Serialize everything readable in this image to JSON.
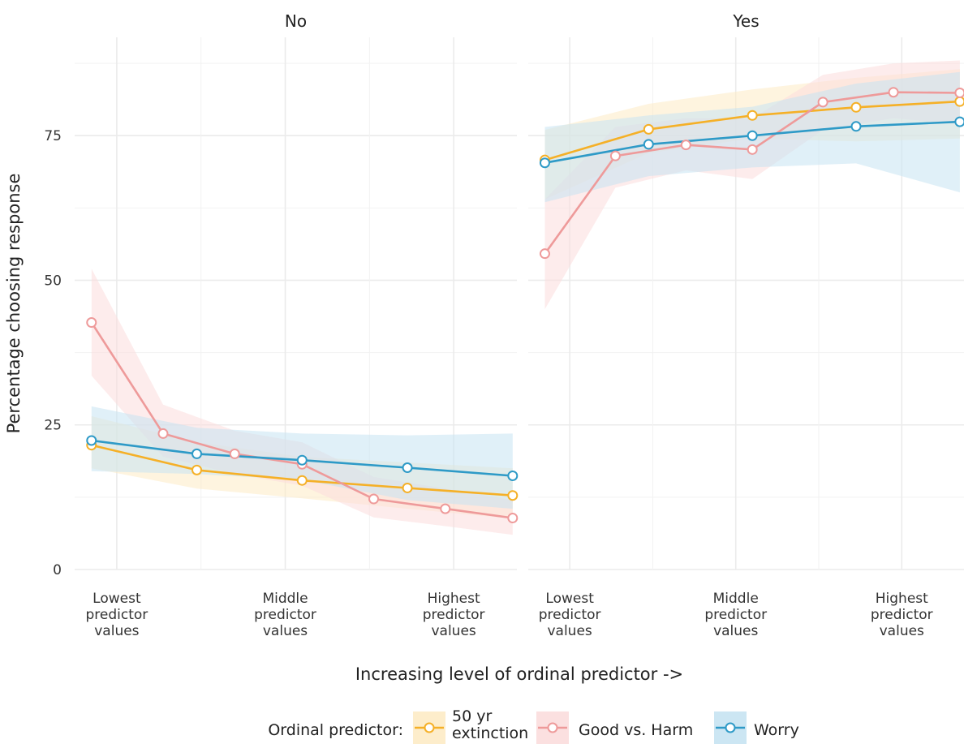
{
  "chart_data": {
    "type": "line",
    "xlabel": "Increasing level of ordinal predictor ->",
    "ylabel": "Percentage choosing response",
    "ylim": [
      0,
      92
    ],
    "y_ticks": [
      0,
      25,
      50,
      75
    ],
    "x_ticks": [
      {
        "value": 0.1,
        "lines": [
          "Lowest",
          "predictor",
          "values"
        ]
      },
      {
        "value": 0.5,
        "lines": [
          "Middle",
          "predictor",
          "values"
        ]
      },
      {
        "value": 0.9,
        "lines": [
          "Highest",
          "predictor",
          "values"
        ]
      }
    ],
    "xlim": [
      0,
      1.05
    ],
    "grid": true,
    "legend": {
      "position": "bottom",
      "title": "Ordinal predictor:",
      "entries": [
        {
          "key": "extinction",
          "lines": [
            "50 yr",
            "extinction"
          ]
        },
        {
          "key": "goodharm",
          "lines": [
            "Good vs. Harm"
          ]
        },
        {
          "key": "worry",
          "lines": [
            "Worry"
          ]
        }
      ]
    },
    "series_style": {
      "extinction": {
        "color": "#F5B027",
        "band": "#FDEBC5"
      },
      "goodharm": {
        "color": "#EE9A9A",
        "band": "#FBDDDD"
      },
      "worry": {
        "color": "#2E9AC7",
        "band": "#C7E3F2"
      }
    },
    "facets": [
      {
        "title": "No",
        "series": [
          {
            "key": "extinction",
            "x": [
              0.04,
              0.29,
              0.54,
              0.79,
              1.04
            ],
            "y": [
              21.5,
              17.2,
              15.4,
              14.1,
              12.8
            ],
            "lower": [
              17.5,
              14.0,
              12.3,
              10.5,
              8.8
            ],
            "upper": [
              26.5,
              22.0,
              19.5,
              18.5,
              17.5
            ]
          },
          {
            "key": "goodharm",
            "x": [
              0.04,
              0.21,
              0.38,
              0.54,
              0.71,
              0.88,
              1.04
            ],
            "y": [
              42.7,
              23.5,
              20.0,
              18.2,
              12.2,
              10.5,
              8.9
            ],
            "lower": [
              33.5,
              19.5,
              16.5,
              14.5,
              9.0,
              7.5,
              6.0
            ],
            "upper": [
              52.0,
              28.5,
              24.0,
              22.0,
              16.0,
              14.0,
              12.0
            ]
          },
          {
            "key": "worry",
            "x": [
              0.04,
              0.29,
              0.54,
              0.79,
              1.04
            ],
            "y": [
              22.3,
              20.0,
              18.9,
              17.6,
              16.2
            ],
            "lower": [
              17.0,
              16.5,
              15.5,
              12.0,
              10.5
            ],
            "upper": [
              28.2,
              24.5,
              23.5,
              23.2,
              23.5
            ]
          }
        ]
      },
      {
        "title": "Yes",
        "series": [
          {
            "key": "extinction",
            "x": [
              0.04,
              0.29,
              0.54,
              0.79,
              1.04
            ],
            "y": [
              70.8,
              76.1,
              78.5,
              79.9,
              80.9
            ],
            "lower": [
              64.0,
              72.0,
              74.5,
              74.0,
              74.5
            ],
            "upper": [
              76.0,
              80.5,
              83.0,
              85.0,
              86.5
            ]
          },
          {
            "key": "goodharm",
            "x": [
              0.04,
              0.21,
              0.38,
              0.54,
              0.71,
              0.88,
              1.04
            ],
            "y": [
              54.6,
              71.5,
              73.4,
              72.6,
              80.8,
              82.5,
              82.4
            ],
            "lower": [
              45.0,
              66.0,
              69.0,
              67.5,
              76.0,
              78.0,
              77.0
            ],
            "upper": [
              64.0,
              76.5,
              78.0,
              78.0,
              85.5,
              87.5,
              88.0
            ]
          },
          {
            "key": "worry",
            "x": [
              0.04,
              0.29,
              0.54,
              0.79,
              1.04
            ],
            "y": [
              70.3,
              73.5,
              75.0,
              76.6,
              77.4
            ],
            "lower": [
              63.5,
              68.0,
              69.5,
              70.2,
              65.2
            ],
            "upper": [
              76.5,
              78.5,
              80.0,
              84.0,
              86.0
            ]
          }
        ]
      }
    ]
  }
}
